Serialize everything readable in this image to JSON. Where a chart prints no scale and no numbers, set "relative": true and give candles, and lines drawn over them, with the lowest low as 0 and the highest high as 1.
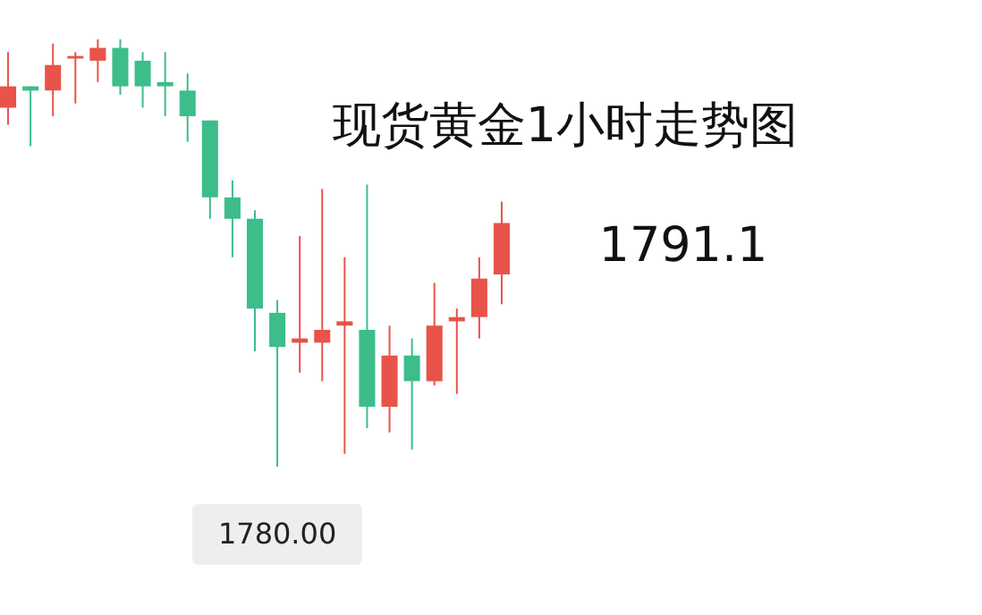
{
  "chart_data": {
    "type": "candlestick",
    "title": "现货黄金1小时走势图",
    "relative": true,
    "categories": [
      null,
      null,
      null,
      null,
      null,
      null,
      null,
      null,
      null,
      null,
      null,
      null,
      null,
      null,
      null,
      null,
      null,
      null,
      null,
      null,
      null,
      null,
      null
    ],
    "ohlc": [
      [
        0.84,
        0.97,
        0.8,
        0.89
      ],
      [
        0.89,
        0.89,
        0.75,
        0.88
      ],
      [
        0.88,
        0.99,
        0.82,
        0.94
      ],
      [
        0.955,
        0.97,
        0.85,
        0.961
      ],
      [
        0.95,
        1.0,
        0.9,
        0.98
      ],
      [
        0.98,
        1.0,
        0.87,
        0.89
      ],
      [
        0.95,
        0.97,
        0.84,
        0.89
      ],
      [
        0.9,
        0.97,
        0.82,
        0.89
      ],
      [
        0.88,
        0.92,
        0.76,
        0.82
      ],
      [
        0.81,
        0.81,
        0.58,
        0.63
      ],
      [
        0.63,
        0.67,
        0.49,
        0.58
      ],
      [
        0.58,
        0.6,
        0.27,
        0.37
      ],
      [
        0.36,
        0.39,
        0.0,
        0.28
      ],
      [
        0.29,
        0.54,
        0.22,
        0.3
      ],
      [
        0.29,
        0.65,
        0.2,
        0.32
      ],
      [
        0.33,
        0.49,
        0.03,
        0.34
      ],
      [
        0.32,
        0.66,
        0.09,
        0.14
      ],
      [
        0.14,
        0.33,
        0.08,
        0.26
      ],
      [
        0.26,
        0.3,
        0.04,
        0.2
      ],
      [
        0.2,
        0.43,
        0.19,
        0.33
      ],
      [
        0.34,
        0.37,
        0.17,
        0.35
      ],
      [
        0.35,
        0.49,
        0.3,
        0.44
      ],
      [
        0.45,
        0.62,
        0.38,
        0.57
      ]
    ],
    "colors": [
      "#e8534a",
      "#3dbd8a",
      "#e8534a",
      "#e8534a",
      "#e8534a",
      "#3dbd8a",
      "#3dbd8a",
      "#3dbd8a",
      "#3dbd8a",
      "#3dbd8a",
      "#3dbd8a",
      "#3dbd8a",
      "#3dbd8a",
      "#e8534a",
      "#e8534a",
      "#e8534a",
      "#3dbd8a",
      "#e8534a",
      "#3dbd8a",
      "#e8534a",
      "#e8534a",
      "#e8534a",
      "#e8534a"
    ],
    "annotations": [
      {
        "text": "1780.00",
        "y": 0
      },
      "1791.1"
    ]
  }
}
